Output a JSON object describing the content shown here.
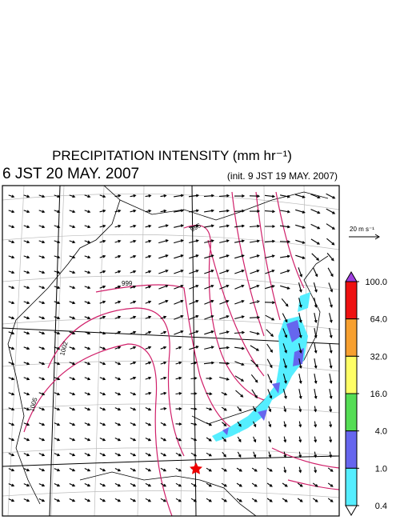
{
  "title": "PRECIPITATION INTENSITY (mm hr⁻¹)",
  "valid_time": "6 JST 20 MAY. 2007",
  "init_time": "(init. 9 JST 19 MAY. 2007)",
  "wind_scale_label": "20 m s⁻¹",
  "colorbar": {
    "levels": [
      {
        "value": 100,
        "label": "100.0"
      },
      {
        "value": 64,
        "label": "64.0"
      },
      {
        "value": 32,
        "label": "32.0"
      },
      {
        "value": 16,
        "label": "16.0"
      },
      {
        "value": 4,
        "label": "4.0"
      },
      {
        "value": 1,
        "label": "1.0"
      },
      {
        "value": 0.4,
        "label": "0.4"
      }
    ],
    "colors": [
      "#a040e0",
      "#ee1111",
      "#f7a030",
      "#ffff66",
      "#55dd55",
      "#6666ee",
      "#55eeff",
      "#ffffff"
    ]
  },
  "contour_labels": [
    "996",
    "999",
    "1002",
    "1005"
  ]
}
